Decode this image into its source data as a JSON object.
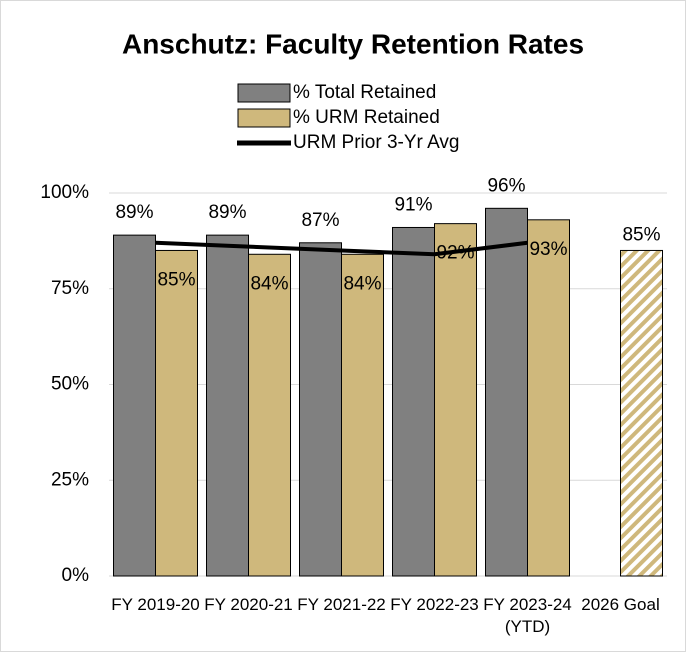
{
  "chart_data": {
    "type": "bar",
    "title": "Anschutz: Faculty Retention Rates",
    "categories": [
      "FY 2019-20",
      "FY 2020-21",
      "FY 2021-22",
      "FY 2022-23",
      "FY 2023-24 (YTD)",
      "2026 Goal"
    ],
    "series": [
      {
        "name": "% Total Retained",
        "color": "#808080",
        "values": [
          89,
          89,
          87,
          91,
          96,
          null
        ],
        "value_labels": [
          "89%",
          "89%",
          "87%",
          "91%",
          "96%",
          null
        ]
      },
      {
        "name": "% URM Retained",
        "color": "#cfb87c",
        "values": [
          85,
          84,
          84,
          92,
          93,
          null
        ],
        "value_labels": [
          "85%",
          "84%",
          "84%",
          "92%",
          "93%",
          null
        ]
      },
      {
        "name": "URM Prior 3-Yr Avg",
        "type": "line",
        "color": "#000000",
        "values": [
          87,
          86,
          85,
          84,
          87,
          null
        ]
      },
      {
        "color": "#cfb87c",
        "pattern": "hatch",
        "values": [
          null,
          null,
          null,
          null,
          null,
          85
        ],
        "value_labels": [
          null,
          null,
          null,
          null,
          null,
          "85%"
        ]
      }
    ],
    "ylim": [
      0,
      100
    ],
    "yticks": [
      {
        "value": 0,
        "label": "0%"
      },
      {
        "value": 25,
        "label": "25%"
      },
      {
        "value": 50,
        "label": "50%"
      },
      {
        "value": 75,
        "label": "75%"
      },
      {
        "value": 100,
        "label": "100%"
      }
    ],
    "grid": true
  }
}
